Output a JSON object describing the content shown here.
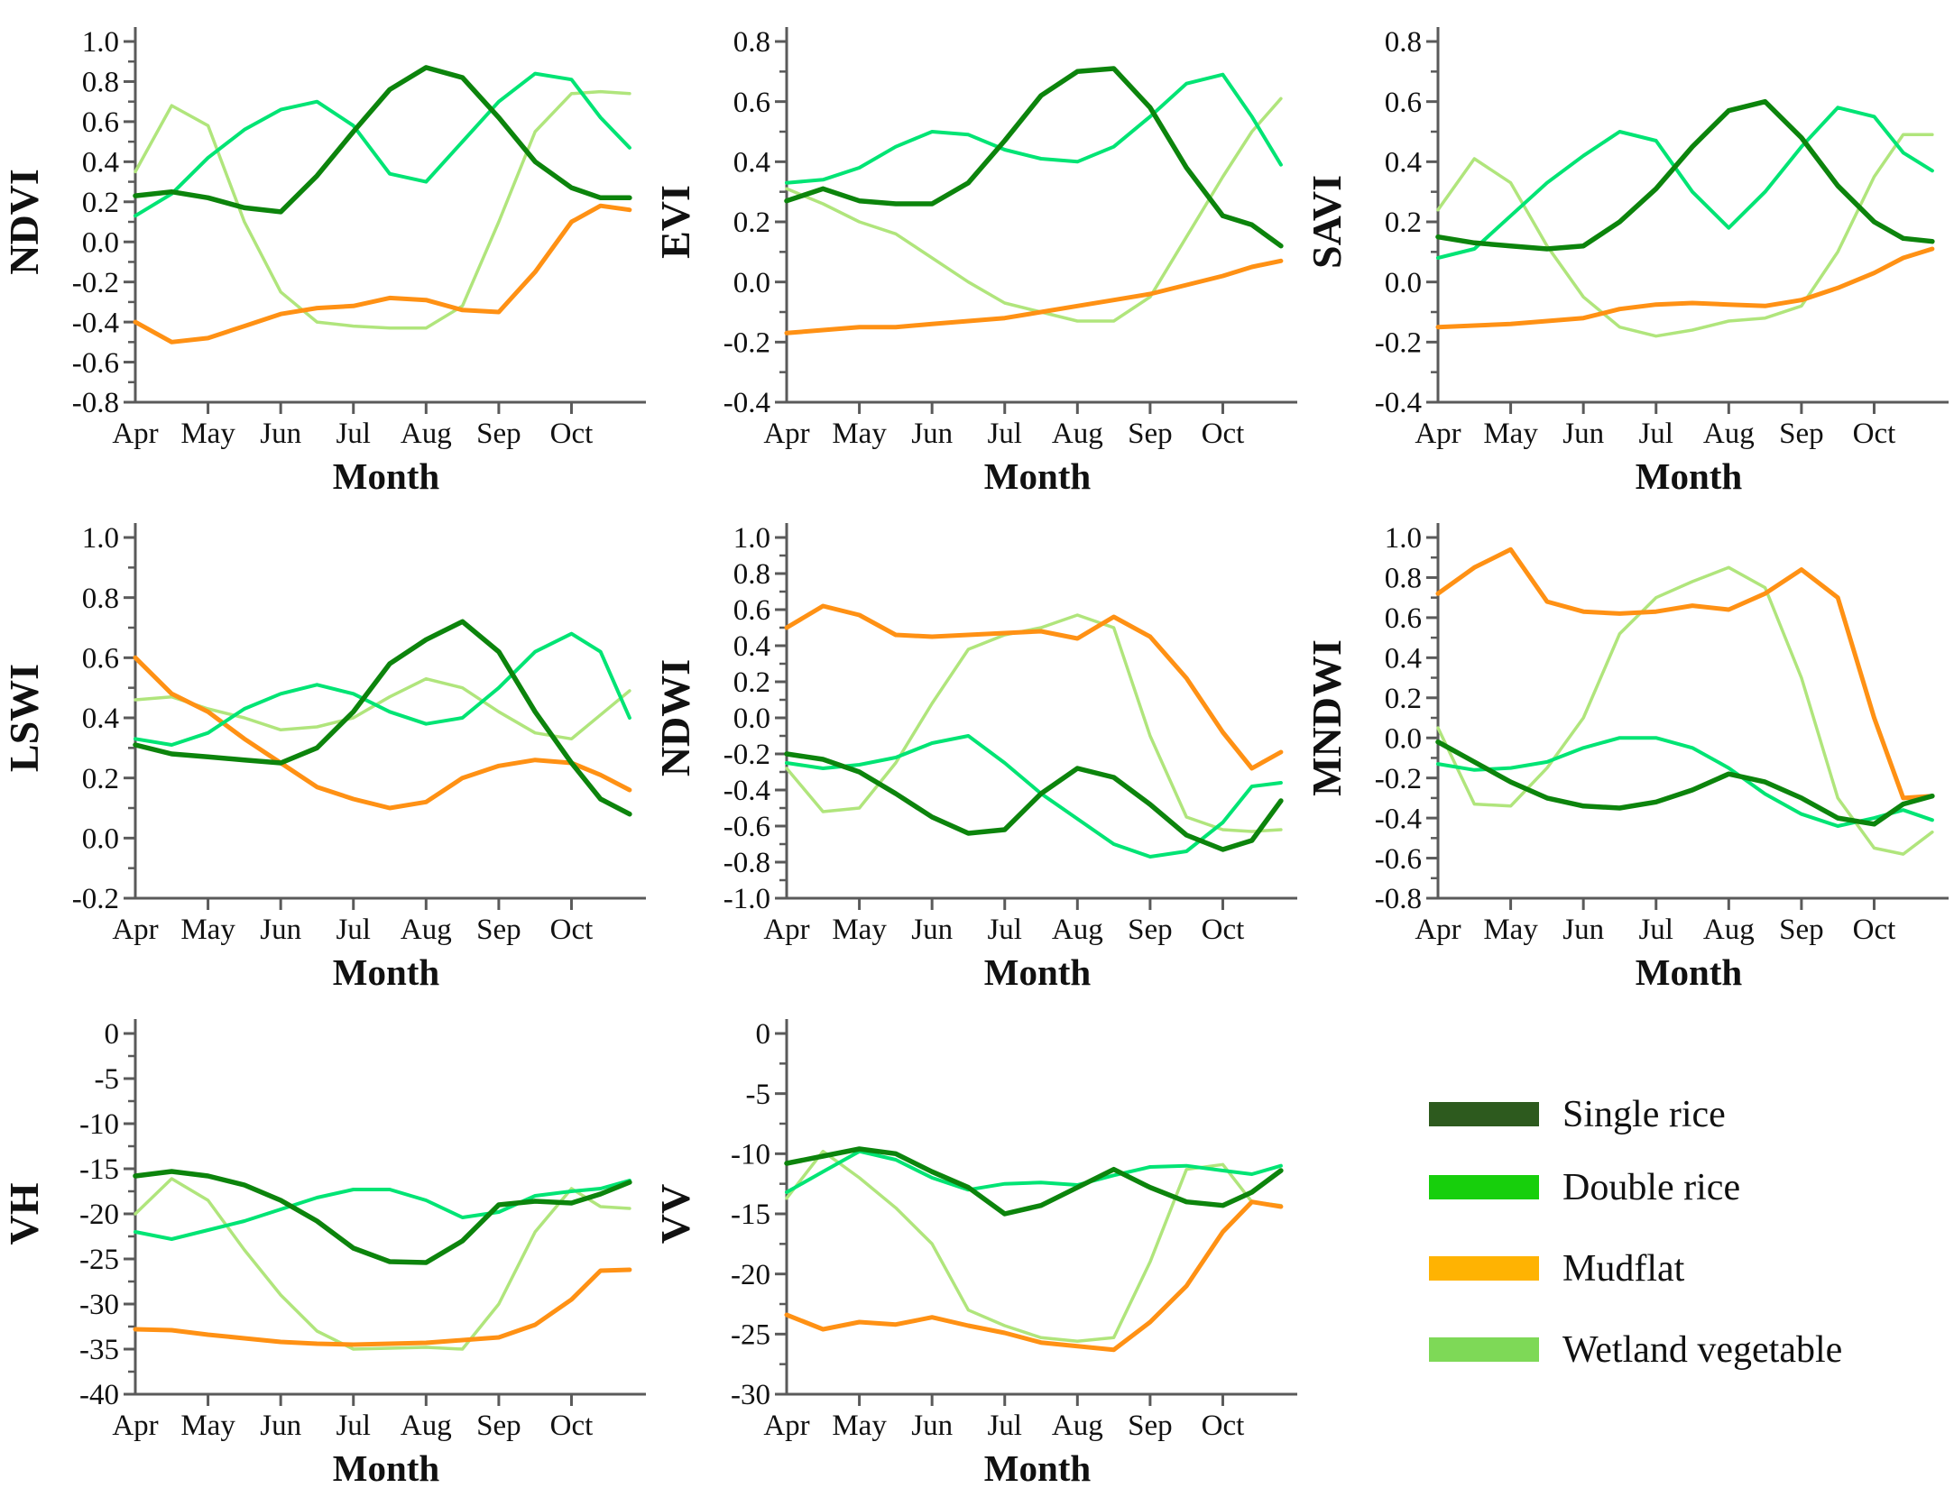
{
  "legend": {
    "items": [
      {
        "label": "Single rice",
        "swatch_color": "#2d5a1e"
      },
      {
        "label": "Double rice",
        "swatch_color": "#17cf0c"
      },
      {
        "label": "Mudflat",
        "swatch_color": "#ffb302"
      },
      {
        "label": "Wetland vegetable",
        "swatch_color": "#7ed957"
      }
    ]
  },
  "chart_data": [
    {
      "type": "line",
      "ylabel": "NDVI",
      "xlabel": "Month",
      "ylim": [
        -0.8,
        1.0
      ],
      "ytick_step": 0.2,
      "xlim": [
        4,
        10.9
      ],
      "x_tick_labels": [
        "Apr",
        "May",
        "Jun",
        "Jul",
        "Aug",
        "Sep",
        "Oct"
      ],
      "x": [
        4,
        4.5,
        5,
        5.5,
        6,
        6.5,
        7,
        7.5,
        8,
        8.5,
        9,
        9.5,
        10,
        10.4,
        10.8
      ],
      "series": [
        {
          "name": "Single rice",
          "color": "#0c840c",
          "line_width": 5.5,
          "values": [
            0.23,
            0.25,
            0.22,
            0.17,
            0.15,
            0.33,
            0.55,
            0.76,
            0.87,
            0.82,
            0.62,
            0.4,
            0.27,
            0.22,
            0.22
          ]
        },
        {
          "name": "Double rice",
          "color": "#00e474",
          "line_width": 4,
          "values": [
            0.13,
            0.24,
            0.42,
            0.56,
            0.66,
            0.7,
            0.58,
            0.34,
            0.3,
            0.5,
            0.7,
            0.84,
            0.81,
            0.62,
            0.47
          ]
        },
        {
          "name": "Mudflat",
          "color": "#ff9114",
          "line_width": 5,
          "values": [
            -0.4,
            -0.5,
            -0.48,
            -0.42,
            -0.36,
            -0.33,
            -0.32,
            -0.28,
            -0.29,
            -0.34,
            -0.35,
            -0.15,
            0.1,
            0.18,
            0.16
          ]
        },
        {
          "name": "Wetland vegetable",
          "color": "#b0e57c",
          "line_width": 3.5,
          "values": [
            0.35,
            0.68,
            0.58,
            0.1,
            -0.25,
            -0.4,
            -0.42,
            -0.43,
            -0.43,
            -0.32,
            0.1,
            0.55,
            0.74,
            0.75,
            0.74
          ]
        }
      ]
    },
    {
      "type": "line",
      "ylabel": "EVI",
      "xlabel": "Month",
      "ylim": [
        -0.4,
        0.8
      ],
      "ytick_step": 0.2,
      "xlim": [
        4,
        10.9
      ],
      "x_tick_labels": [
        "Apr",
        "May",
        "Jun",
        "Jul",
        "Aug",
        "Sep",
        "Oct"
      ],
      "x": [
        4,
        4.5,
        5,
        5.5,
        6,
        6.5,
        7,
        7.5,
        8,
        8.5,
        9,
        9.5,
        10,
        10.4,
        10.8
      ],
      "series": [
        {
          "name": "Single rice",
          "color": "#0c840c",
          "line_width": 5.5,
          "values": [
            0.27,
            0.31,
            0.27,
            0.26,
            0.26,
            0.33,
            0.47,
            0.62,
            0.7,
            0.71,
            0.58,
            0.38,
            0.22,
            0.19,
            0.12
          ]
        },
        {
          "name": "Double rice",
          "color": "#00e474",
          "line_width": 4,
          "values": [
            0.33,
            0.34,
            0.38,
            0.45,
            0.5,
            0.49,
            0.44,
            0.41,
            0.4,
            0.45,
            0.55,
            0.66,
            0.69,
            0.55,
            0.39
          ]
        },
        {
          "name": "Mudflat",
          "color": "#ff9114",
          "line_width": 5,
          "values": [
            -0.17,
            -0.16,
            -0.15,
            -0.15,
            -0.14,
            -0.13,
            -0.12,
            -0.1,
            -0.08,
            -0.06,
            -0.04,
            -0.01,
            0.02,
            0.05,
            0.07
          ]
        },
        {
          "name": "Wetland vegetable",
          "color": "#b0e57c",
          "line_width": 3.5,
          "values": [
            0.31,
            0.26,
            0.2,
            0.16,
            0.08,
            0.0,
            -0.07,
            -0.1,
            -0.13,
            -0.13,
            -0.05,
            0.15,
            0.35,
            0.5,
            0.61
          ]
        }
      ]
    },
    {
      "type": "line",
      "ylabel": "SAVI",
      "xlabel": "Month",
      "ylim": [
        -0.4,
        0.8
      ],
      "ytick_step": 0.2,
      "xlim": [
        4,
        10.9
      ],
      "x_tick_labels": [
        "Apr",
        "May",
        "Jun",
        "Jul",
        "Aug",
        "Sep",
        "Oct"
      ],
      "x": [
        4,
        4.5,
        5,
        5.5,
        6,
        6.5,
        7,
        7.5,
        8,
        8.5,
        9,
        9.5,
        10,
        10.4,
        10.8
      ],
      "series": [
        {
          "name": "Single rice",
          "color": "#0c840c",
          "line_width": 5.5,
          "values": [
            0.15,
            0.13,
            0.12,
            0.11,
            0.12,
            0.2,
            0.31,
            0.45,
            0.57,
            0.6,
            0.48,
            0.32,
            0.2,
            0.145,
            0.135
          ]
        },
        {
          "name": "Double rice",
          "color": "#00e474",
          "line_width": 4,
          "values": [
            0.08,
            0.11,
            0.22,
            0.33,
            0.42,
            0.5,
            0.47,
            0.3,
            0.18,
            0.3,
            0.45,
            0.58,
            0.55,
            0.43,
            0.37
          ]
        },
        {
          "name": "Mudflat",
          "color": "#ff9114",
          "line_width": 5,
          "values": [
            -0.15,
            -0.145,
            -0.14,
            -0.13,
            -0.12,
            -0.09,
            -0.075,
            -0.07,
            -0.075,
            -0.08,
            -0.06,
            -0.02,
            0.03,
            0.08,
            0.11
          ]
        },
        {
          "name": "Wetland vegetable",
          "color": "#b0e57c",
          "line_width": 3.5,
          "values": [
            0.24,
            0.41,
            0.33,
            0.12,
            -0.05,
            -0.15,
            -0.18,
            -0.16,
            -0.13,
            -0.12,
            -0.08,
            0.1,
            0.35,
            0.49,
            0.49
          ]
        }
      ]
    },
    {
      "type": "line",
      "ylabel": "LSWI",
      "xlabel": "Month",
      "ylim": [
        -0.2,
        1.0
      ],
      "ytick_step": 0.2,
      "xlim": [
        4,
        10.9
      ],
      "x_tick_labels": [
        "Apr",
        "May",
        "Jun",
        "Jul",
        "Aug",
        "Sep",
        "Oct"
      ],
      "x": [
        4,
        4.5,
        5,
        5.5,
        6,
        6.5,
        7,
        7.5,
        8,
        8.5,
        9,
        9.5,
        10,
        10.4,
        10.8
      ],
      "series": [
        {
          "name": "Single rice",
          "color": "#0c840c",
          "line_width": 5.5,
          "values": [
            0.31,
            0.28,
            0.27,
            0.26,
            0.25,
            0.3,
            0.42,
            0.58,
            0.66,
            0.72,
            0.62,
            0.42,
            0.25,
            0.13,
            0.08
          ]
        },
        {
          "name": "Double rice",
          "color": "#00e474",
          "line_width": 4,
          "values": [
            0.33,
            0.31,
            0.35,
            0.43,
            0.48,
            0.51,
            0.48,
            0.42,
            0.38,
            0.4,
            0.5,
            0.62,
            0.68,
            0.62,
            0.4
          ]
        },
        {
          "name": "Mudflat",
          "color": "#ff9114",
          "line_width": 5,
          "values": [
            0.6,
            0.48,
            0.42,
            0.33,
            0.25,
            0.17,
            0.13,
            0.1,
            0.12,
            0.2,
            0.24,
            0.26,
            0.25,
            0.21,
            0.16
          ]
        },
        {
          "name": "Wetland vegetable",
          "color": "#b0e57c",
          "line_width": 3.5,
          "values": [
            0.46,
            0.47,
            0.43,
            0.4,
            0.36,
            0.37,
            0.4,
            0.47,
            0.53,
            0.5,
            0.42,
            0.35,
            0.33,
            0.41,
            0.49
          ]
        }
      ]
    },
    {
      "type": "line",
      "ylabel": "NDWI",
      "xlabel": "Month",
      "ylim": [
        -1.0,
        1.0
      ],
      "ytick_step": 0.2,
      "xlim": [
        4,
        10.9
      ],
      "x_tick_labels": [
        "Apr",
        "May",
        "Jun",
        "Jul",
        "Aug",
        "Sep",
        "Oct"
      ],
      "x": [
        4,
        4.5,
        5,
        5.5,
        6,
        6.5,
        7,
        7.5,
        8,
        8.5,
        9,
        9.5,
        10,
        10.4,
        10.8
      ],
      "series": [
        {
          "name": "Single rice",
          "color": "#0c840c",
          "line_width": 5.5,
          "values": [
            -0.2,
            -0.23,
            -0.3,
            -0.42,
            -0.55,
            -0.64,
            -0.62,
            -0.42,
            -0.28,
            -0.33,
            -0.48,
            -0.65,
            -0.73,
            -0.68,
            -0.46
          ]
        },
        {
          "name": "Double rice",
          "color": "#00e474",
          "line_width": 4,
          "values": [
            -0.25,
            -0.28,
            -0.26,
            -0.22,
            -0.14,
            -0.1,
            -0.25,
            -0.42,
            -0.56,
            -0.7,
            -0.77,
            -0.74,
            -0.58,
            -0.38,
            -0.36
          ]
        },
        {
          "name": "Mudflat",
          "color": "#ff9114",
          "line_width": 5,
          "values": [
            0.5,
            0.62,
            0.57,
            0.46,
            0.45,
            0.46,
            0.47,
            0.48,
            0.44,
            0.56,
            0.45,
            0.22,
            -0.08,
            -0.28,
            -0.19
          ]
        },
        {
          "name": "Wetland vegetable",
          "color": "#b0e57c",
          "line_width": 3.5,
          "values": [
            -0.28,
            -0.52,
            -0.5,
            -0.25,
            0.08,
            0.38,
            0.46,
            0.5,
            0.57,
            0.5,
            -0.1,
            -0.55,
            -0.62,
            -0.63,
            -0.62
          ]
        }
      ]
    },
    {
      "type": "line",
      "ylabel": "MNDWI",
      "xlabel": "Month",
      "ylim": [
        -0.8,
        1.0
      ],
      "ytick_step": 0.2,
      "xlim": [
        4,
        10.9
      ],
      "x_tick_labels": [
        "Apr",
        "May",
        "Jun",
        "Jul",
        "Aug",
        "Sep",
        "Oct"
      ],
      "x": [
        4,
        4.5,
        5,
        5.5,
        6,
        6.5,
        7,
        7.5,
        8,
        8.5,
        9,
        9.5,
        10,
        10.4,
        10.8
      ],
      "series": [
        {
          "name": "Single rice",
          "color": "#0c840c",
          "line_width": 5.5,
          "values": [
            -0.02,
            -0.12,
            -0.22,
            -0.3,
            -0.34,
            -0.35,
            -0.32,
            -0.26,
            -0.18,
            -0.22,
            -0.3,
            -0.4,
            -0.43,
            -0.33,
            -0.29
          ]
        },
        {
          "name": "Double rice",
          "color": "#00e474",
          "line_width": 4,
          "values": [
            -0.13,
            -0.16,
            -0.15,
            -0.12,
            -0.05,
            0.0,
            0.0,
            -0.05,
            -0.15,
            -0.28,
            -0.38,
            -0.44,
            -0.4,
            -0.36,
            -0.41
          ]
        },
        {
          "name": "Mudflat",
          "color": "#ff9114",
          "line_width": 5,
          "values": [
            0.72,
            0.85,
            0.94,
            0.68,
            0.63,
            0.62,
            0.63,
            0.66,
            0.64,
            0.72,
            0.84,
            0.7,
            0.1,
            -0.3,
            -0.29
          ]
        },
        {
          "name": "Wetland vegetable",
          "color": "#b0e57c",
          "line_width": 3.5,
          "values": [
            0.05,
            -0.33,
            -0.34,
            -0.15,
            0.1,
            0.52,
            0.7,
            0.78,
            0.85,
            0.75,
            0.3,
            -0.3,
            -0.55,
            -0.58,
            -0.47
          ]
        }
      ]
    },
    {
      "type": "line",
      "ylabel": "VH",
      "xlabel": "Month",
      "ylim": [
        -40,
        0
      ],
      "ytick_step": 5,
      "xlim": [
        4,
        10.9
      ],
      "x_tick_labels": [
        "Apr",
        "May",
        "Jun",
        "Jul",
        "Aug",
        "Sep",
        "Oct"
      ],
      "x": [
        4,
        4.5,
        5,
        5.5,
        6,
        6.5,
        7,
        7.5,
        8,
        8.5,
        9,
        9.5,
        10,
        10.4,
        10.8
      ],
      "series": [
        {
          "name": "Single rice",
          "color": "#0c840c",
          "line_width": 5.5,
          "values": [
            -15.8,
            -15.3,
            -15.8,
            -16.8,
            -18.5,
            -20.8,
            -23.8,
            -25.3,
            -25.4,
            -23.0,
            -19.0,
            -18.6,
            -18.8,
            -17.8,
            -16.5
          ]
        },
        {
          "name": "Double rice",
          "color": "#00e474",
          "line_width": 4,
          "values": [
            -22.0,
            -22.8,
            -21.8,
            -20.8,
            -19.5,
            -18.2,
            -17.3,
            -17.3,
            -18.5,
            -20.4,
            -19.8,
            -18.0,
            -17.5,
            -17.2,
            -16.3
          ]
        },
        {
          "name": "Mudflat",
          "color": "#ff9114",
          "line_width": 5,
          "values": [
            -32.8,
            -32.9,
            -33.4,
            -33.8,
            -34.2,
            -34.4,
            -34.5,
            -34.4,
            -34.3,
            -34.0,
            -33.7,
            -32.3,
            -29.5,
            -26.3,
            -26.2
          ]
        },
        {
          "name": "Wetland vegetable",
          "color": "#b0e57c",
          "line_width": 3.5,
          "values": [
            -20.0,
            -16.1,
            -18.5,
            -24.0,
            -29.0,
            -33.0,
            -35.0,
            -34.9,
            -34.8,
            -35.0,
            -30.0,
            -22.0,
            -17.2,
            -19.2,
            -19.4
          ]
        }
      ]
    },
    {
      "type": "line",
      "ylabel": "VV",
      "xlabel": "Month",
      "ylim": [
        -30,
        0
      ],
      "ytick_step": 5,
      "xlim": [
        4,
        10.9
      ],
      "x_tick_labels": [
        "Apr",
        "May",
        "Jun",
        "Jul",
        "Aug",
        "Sep",
        "Oct"
      ],
      "x": [
        4,
        4.5,
        5,
        5.5,
        6,
        6.5,
        7,
        7.5,
        8,
        8.5,
        9,
        9.5,
        10,
        10.4,
        10.8
      ],
      "series": [
        {
          "name": "Single rice",
          "color": "#0c840c",
          "line_width": 5.5,
          "values": [
            -10.8,
            -10.2,
            -9.6,
            -10.0,
            -11.5,
            -12.8,
            -15.0,
            -14.3,
            -12.8,
            -11.3,
            -12.8,
            -14.0,
            -14.3,
            -13.2,
            -11.4
          ]
        },
        {
          "name": "Double rice",
          "color": "#00e474",
          "line_width": 4,
          "values": [
            -13.2,
            -11.5,
            -9.8,
            -10.5,
            -12.0,
            -13.0,
            -12.5,
            -12.4,
            -12.6,
            -11.8,
            -11.1,
            -11.0,
            -11.4,
            -11.7,
            -11.0
          ]
        },
        {
          "name": "Mudflat",
          "color": "#ff9114",
          "line_width": 5,
          "values": [
            -23.4,
            -24.6,
            -24.0,
            -24.2,
            -23.6,
            -24.3,
            -24.9,
            -25.7,
            -26.0,
            -26.3,
            -24.0,
            -21.0,
            -16.5,
            -14.0,
            -14.4
          ]
        },
        {
          "name": "Wetland vegetable",
          "color": "#b0e57c",
          "line_width": 3.5,
          "values": [
            -13.7,
            -9.8,
            -12.0,
            -14.5,
            -17.5,
            -23.0,
            -24.3,
            -25.3,
            -25.6,
            -25.3,
            -19.0,
            -11.3,
            -10.9,
            -14.0,
            -14.3
          ]
        }
      ]
    }
  ]
}
